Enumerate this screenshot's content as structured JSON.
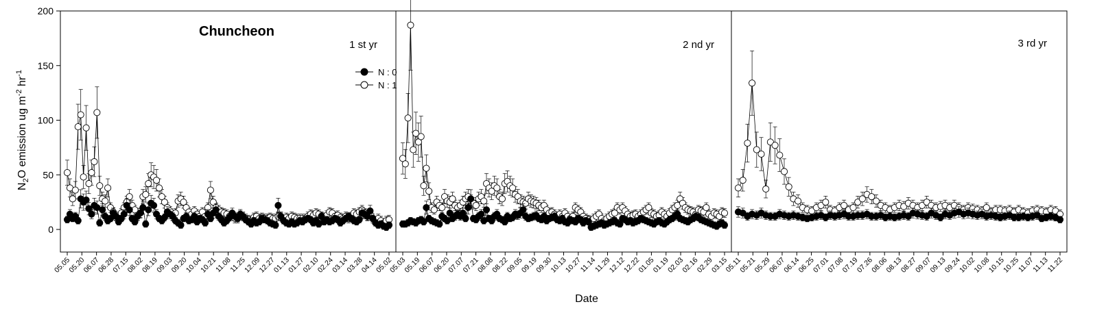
{
  "chart_data": {
    "type": "scatter",
    "title": "Chuncheon",
    "xlabel": "Date",
    "ylabel": "N2O emission ug m-2 hr-1",
    "ylabel_parts": {
      "a": "N",
      "a_sub": "2",
      "b": "O emission ug m",
      "b_sup": "-2",
      "c": " hr",
      "c_sup": "-1"
    },
    "ylim": [
      0,
      200
    ],
    "yticks": [
      "0",
      "50",
      "100",
      "150",
      "200"
    ],
    "legend_position": "upper-right of first panel",
    "legend": [
      {
        "label": "N : 0",
        "marker": "filled-circle",
        "color": "#000000"
      },
      {
        "label": "N : 1",
        "marker": "open-circle",
        "color": "#000000"
      }
    ],
    "panels": [
      {
        "label": "1 st yr",
        "xticks": [
          "05.05",
          "05.20",
          "06.07",
          "06.28",
          "07.15",
          "08.02",
          "08.19",
          "09.03",
          "09.20",
          "10.04",
          "10.21",
          "11.08",
          "11.25",
          "12.09",
          "12.27",
          "01.13",
          "01.27",
          "02.10",
          "02.24",
          "03.14",
          "03.28",
          "04.14",
          "05.02"
        ],
        "series": [
          {
            "name": "N : 0",
            "y": [
              9,
              14,
              10,
              12,
              8,
              28,
              25,
              27,
              19,
              14,
              22,
              20,
              6,
              18,
              12,
              8,
              10,
              15,
              12,
              7,
              10,
              14,
              22,
              18,
              10,
              7,
              12,
              15,
              20,
              5,
              18,
              24,
              22,
              14,
              10,
              8,
              11,
              16,
              14,
              12,
              8,
              6,
              4,
              10,
              12,
              8,
              9,
              12,
              7,
              10,
              9,
              6,
              14,
              10,
              15,
              18,
              12,
              9,
              6,
              8,
              11,
              15,
              12,
              10,
              14,
              12,
              9,
              7,
              5,
              8,
              6,
              7,
              10,
              9,
              8,
              6,
              5,
              4,
              22,
              12,
              8,
              6,
              5,
              7,
              5,
              6,
              8,
              7,
              9,
              10,
              9,
              6,
              8,
              5,
              12,
              7,
              9,
              7,
              8,
              10,
              9,
              6,
              8,
              10,
              12,
              10,
              8,
              7,
              9,
              15,
              14,
              12,
              17,
              10,
              6,
              4,
              5,
              3,
              2,
              4
            ]
          },
          {
            "name": "N : 1",
            "y": [
              52,
              38,
              28,
              36,
              94,
              105,
              48,
              93,
              42,
              52,
              62,
              107,
              40,
              28,
              26,
              38,
              20,
              16,
              12,
              10,
              15,
              20,
              25,
              30,
              22,
              18,
              12,
              15,
              30,
              32,
              42,
              50,
              48,
              45,
              38,
              30,
              25,
              20,
              17,
              12,
              15,
              26,
              28,
              25,
              20,
              16,
              14,
              17,
              14,
              12,
              16,
              12,
              20,
              36,
              25,
              20,
              18,
              16,
              15,
              14,
              12,
              13,
              10,
              10,
              13,
              12,
              10,
              9,
              8,
              11,
              12,
              10,
              11,
              10,
              10,
              11,
              10,
              10,
              12,
              12,
              9,
              11,
              10,
              12,
              11,
              10,
              10,
              10,
              10,
              12,
              14,
              13,
              15,
              14,
              12,
              11,
              13,
              16,
              15,
              12,
              13,
              11,
              10,
              12,
              10,
              11,
              15,
              14,
              16,
              18,
              15,
              12,
              14,
              10,
              8,
              10,
              8,
              6,
              8,
              9
            ]
          }
        ]
      },
      {
        "label": "2 nd yr",
        "xticks": [
          "05.03",
          "05.19",
          "06.07",
          "06.20",
          "07.07",
          "07.21",
          "08.08",
          "08.22",
          "09.05",
          "09.19",
          "09.30",
          "10.13",
          "10.27",
          "11.14",
          "11.29",
          "12.12",
          "12.22",
          "01.05",
          "01.19",
          "02.03",
          "02.16",
          "02.29",
          "03.15"
        ],
        "series": [
          {
            "name": "N : 0",
            "y": [
              5,
              5,
              6,
              8,
              7,
              6,
              8,
              9,
              7,
              20,
              10,
              8,
              7,
              6,
              5,
              12,
              10,
              8,
              15,
              10,
              12,
              14,
              12,
              15,
              10,
              20,
              28,
              10,
              9,
              12,
              14,
              8,
              18,
              10,
              8,
              12,
              14,
              10,
              9,
              7,
              12,
              10,
              11,
              14,
              13,
              15,
              18,
              12,
              10,
              11,
              12,
              13,
              10,
              9,
              12,
              8,
              10,
              11,
              12,
              9,
              8,
              10,
              7,
              6,
              9,
              8,
              7,
              10,
              9,
              6,
              8,
              7,
              2,
              3,
              4,
              5,
              6,
              4,
              5,
              6,
              7,
              8,
              6,
              5,
              10,
              9,
              7,
              8,
              6,
              7,
              8,
              10,
              9,
              8,
              7,
              6,
              5,
              7,
              8,
              6,
              5,
              7,
              9,
              10,
              12,
              14,
              10,
              9,
              8,
              7,
              9,
              10,
              12,
              11,
              9,
              8,
              7,
              6,
              5,
              4,
              3,
              5,
              6,
              4
            ]
          },
          {
            "name": "N : 1",
            "y": [
              65,
              60,
              102,
              187,
              73,
              88,
              80,
              85,
              40,
              56,
              35,
              20,
              18,
              25,
              22,
              20,
              30,
              26,
              25,
              28,
              22,
              20,
              22,
              25,
              28,
              30,
              26,
              24,
              22,
              28,
              30,
              26,
              42,
              38,
              35,
              40,
              38,
              30,
              28,
              42,
              44,
              40,
              38,
              32,
              30,
              26,
              25,
              24,
              28,
              26,
              25,
              24,
              22,
              20,
              22,
              18,
              15,
              16,
              14,
              12,
              14,
              12,
              15,
              12,
              10,
              12,
              20,
              18,
              16,
              12,
              10,
              9,
              8,
              10,
              12,
              14,
              10,
              8,
              10,
              12,
              14,
              15,
              20,
              18,
              20,
              17,
              14,
              12,
              13,
              14,
              12,
              14,
              16,
              18,
              20,
              15,
              14,
              12,
              13,
              16,
              14,
              12,
              15,
              18,
              20,
              22,
              28,
              24,
              20,
              18,
              17,
              16,
              14,
              18,
              17,
              16,
              20,
              14,
              12,
              15,
              14,
              12,
              16,
              15
            ]
          }
        ]
      },
      {
        "label": "3 rd yr",
        "xticks": [
          "05.11",
          "05.21",
          "05.29",
          "06.07",
          "06.14",
          "06.25",
          "07.01",
          "07.08",
          "07.19",
          "07.26",
          "08.06",
          "08.13",
          "08.27",
          "09.07",
          "09.13",
          "09.24",
          "10.02",
          "10.08",
          "10.15",
          "10.25",
          "11.07",
          "11.13",
          "11.22"
        ],
        "series": [
          {
            "name": "N : 0",
            "y": [
              16,
              15,
              12,
              14,
              13,
              15,
              13,
              12,
              12,
              14,
              13,
              12,
              13,
              12,
              11,
              10,
              11,
              12,
              13,
              11,
              13,
              12,
              13,
              14,
              12,
              12,
              13,
              13,
              14,
              12,
              12,
              13,
              11,
              12,
              11,
              12,
              13,
              12,
              15,
              14,
              13,
              12,
              15,
              13,
              11,
              14,
              13,
              15,
              16,
              14,
              15,
              14,
              13,
              14,
              12,
              13,
              12,
              11,
              12,
              13,
              11,
              11,
              12,
              11,
              12,
              13,
              10,
              11,
              12,
              11,
              9
            ]
          },
          {
            "name": "N : 1",
            "y": [
              38,
              45,
              79,
              134,
              73,
              69,
              37,
              80,
              77,
              68,
              53,
              39,
              28,
              26,
              20,
              18,
              17,
              20,
              22,
              25,
              18,
              17,
              20,
              22,
              18,
              20,
              25,
              28,
              32,
              30,
              26,
              22,
              20,
              18,
              20,
              22,
              21,
              24,
              22,
              20,
              22,
              25,
              22,
              20,
              21,
              22,
              20,
              22,
              20,
              18,
              20,
              19,
              18,
              17,
              20,
              16,
              18,
              18,
              17,
              18,
              16,
              18,
              16,
              15,
              17,
              18,
              17,
              16,
              18,
              17,
              14
            ]
          }
        ]
      }
    ]
  }
}
